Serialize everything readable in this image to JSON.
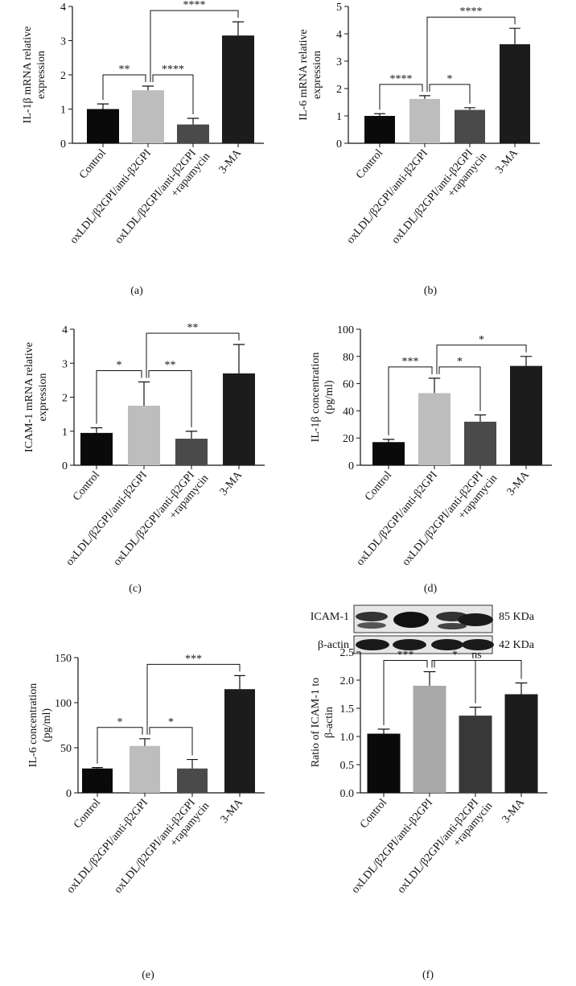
{
  "chart_data": [
    {
      "type": "bar",
      "panel_label": "(a)",
      "ylabel": [
        "IL-1β mRNA relative",
        "expression"
      ],
      "categories": [
        "Control",
        "oxLDL/β2GPI/anti-β2GPI",
        [
          "oxLDL/β2GPI/anti-β2GPI",
          "+rapamycin"
        ],
        "3-MA"
      ],
      "values": [
        1.0,
        1.55,
        0.55,
        3.15
      ],
      "errors": [
        0.15,
        0.12,
        0.18,
        0.4
      ],
      "colors": [
        "#0a0a0a",
        "#bdbdbd",
        "#4a4a4a",
        "#1c1c1c"
      ],
      "ylim": [
        0,
        4
      ],
      "yticks": [
        0,
        1,
        2,
        3,
        4
      ],
      "comparisons": [
        {
          "from": 0,
          "to": 1,
          "label": "**"
        },
        {
          "from": 1,
          "to": 2,
          "label": "****"
        },
        {
          "from": 1,
          "to": 3,
          "label": "****"
        }
      ]
    },
    {
      "type": "bar",
      "panel_label": "(b)",
      "ylabel": [
        "IL-6 mRNA relative",
        "expression"
      ],
      "categories": [
        "Control",
        "oxLDL/β2GPI/anti-β2GPI",
        [
          "oxLDL/β2GPI/anti-β2GPI",
          "+rapamycin"
        ],
        "3-MA"
      ],
      "values": [
        1.0,
        1.62,
        1.22,
        3.62
      ],
      "errors": [
        0.08,
        0.12,
        0.08,
        0.58
      ],
      "colors": [
        "#0a0a0a",
        "#bdbdbd",
        "#4a4a4a",
        "#1c1c1c"
      ],
      "ylim": [
        0,
        5
      ],
      "yticks": [
        0,
        1,
        2,
        3,
        4,
        5
      ],
      "comparisons": [
        {
          "from": 0,
          "to": 1,
          "label": "****"
        },
        {
          "from": 1,
          "to": 2,
          "label": "*"
        },
        {
          "from": 1,
          "to": 3,
          "label": "****"
        }
      ]
    },
    {
      "type": "bar",
      "panel_label": "(c)",
      "ylabel": [
        "ICAM-1 mRNA relative",
        "expression"
      ],
      "categories": [
        "Control",
        "oxLDL/β2GPI/anti-β2GPI",
        [
          "oxLDL/β2GPI/anti-β2GPI",
          "+rapamycin"
        ],
        "3-MA"
      ],
      "values": [
        0.95,
        1.75,
        0.78,
        2.7
      ],
      "errors": [
        0.15,
        0.7,
        0.22,
        0.85
      ],
      "colors": [
        "#0a0a0a",
        "#bdbdbd",
        "#4a4a4a",
        "#1c1c1c"
      ],
      "ylim": [
        0,
        4
      ],
      "yticks": [
        0,
        1,
        2,
        3,
        4
      ],
      "comparisons": [
        {
          "from": 0,
          "to": 1,
          "label": "*"
        },
        {
          "from": 1,
          "to": 2,
          "label": "**"
        },
        {
          "from": 1,
          "to": 3,
          "label": "**"
        }
      ]
    },
    {
      "type": "bar",
      "panel_label": "(d)",
      "ylabel": [
        "IL-1β concentration",
        "(pg/ml)"
      ],
      "categories": [
        "Control",
        "oxLDL/β2GPI/anti-β2GPI",
        [
          "oxLDL/β2GPI/anti-β2GPI",
          "+rapamycin"
        ],
        "3-MA"
      ],
      "values": [
        17,
        53,
        32,
        73
      ],
      "errors": [
        2,
        11,
        5,
        7
      ],
      "colors": [
        "#0a0a0a",
        "#bdbdbd",
        "#4a4a4a",
        "#1c1c1c"
      ],
      "ylim": [
        0,
        100
      ],
      "yticks": [
        0,
        20,
        40,
        60,
        80,
        100
      ],
      "comparisons": [
        {
          "from": 0,
          "to": 1,
          "label": "***"
        },
        {
          "from": 1,
          "to": 2,
          "label": "*"
        },
        {
          "from": 1,
          "to": 3,
          "label": "*"
        }
      ]
    },
    {
      "type": "bar",
      "panel_label": "(e)",
      "ylabel": [
        "IL-6 concentration",
        "(pg/ml)"
      ],
      "categories": [
        "Control",
        "oxLDL/β2GPI/anti-β2GPI",
        [
          "oxLDL/β2GPI/anti-β2GPI",
          "+rapamycin"
        ],
        "3-MA"
      ],
      "values": [
        27,
        52,
        27,
        115
      ],
      "errors": [
        1,
        8,
        10,
        15
      ],
      "colors": [
        "#0a0a0a",
        "#bdbdbd",
        "#4a4a4a",
        "#1c1c1c"
      ],
      "ylim": [
        0,
        150
      ],
      "yticks": [
        0,
        50,
        100,
        150
      ],
      "comparisons": [
        {
          "from": 0,
          "to": 1,
          "label": "*"
        },
        {
          "from": 1,
          "to": 2,
          "label": "*"
        },
        {
          "from": 1,
          "to": 3,
          "label": "***"
        }
      ]
    },
    {
      "type": "bar",
      "panel_label": "(f)",
      "ylabel": [
        "Ratio of ICAM-1 to",
        "β-actin"
      ],
      "categories": [
        "Control",
        "oxLDL/β2GPI/anti-β2GPI",
        [
          "oxLDL/β2GPI/anti-β2GPI",
          "+rapamycin"
        ],
        "3-MA"
      ],
      "values": [
        1.05,
        1.9,
        1.37,
        1.75
      ],
      "errors": [
        0.08,
        0.25,
        0.15,
        0.2
      ],
      "colors": [
        "#0a0a0a",
        "#a9a9a9",
        "#383838",
        "#1c1c1c"
      ],
      "ylim": [
        0,
        2.5
      ],
      "yticks": [
        {
          "value": 0,
          "label": "0.0"
        },
        0.5,
        {
          "value": 1,
          "label": "1.0"
        },
        1.5,
        {
          "value": 2,
          "label": "2.0"
        },
        2.5
      ],
      "comparisons": [
        {
          "from": 0,
          "to": 1,
          "label": "***"
        },
        {
          "from": 1,
          "to": 2,
          "label": "*"
        },
        {
          "from": 1,
          "to": 3,
          "label": "ns"
        }
      ],
      "blot": [
        {
          "label": "ICAM-1",
          "size": "85 KDa"
        },
        {
          "label": "β-actin",
          "size": "42 KDa"
        }
      ]
    }
  ]
}
